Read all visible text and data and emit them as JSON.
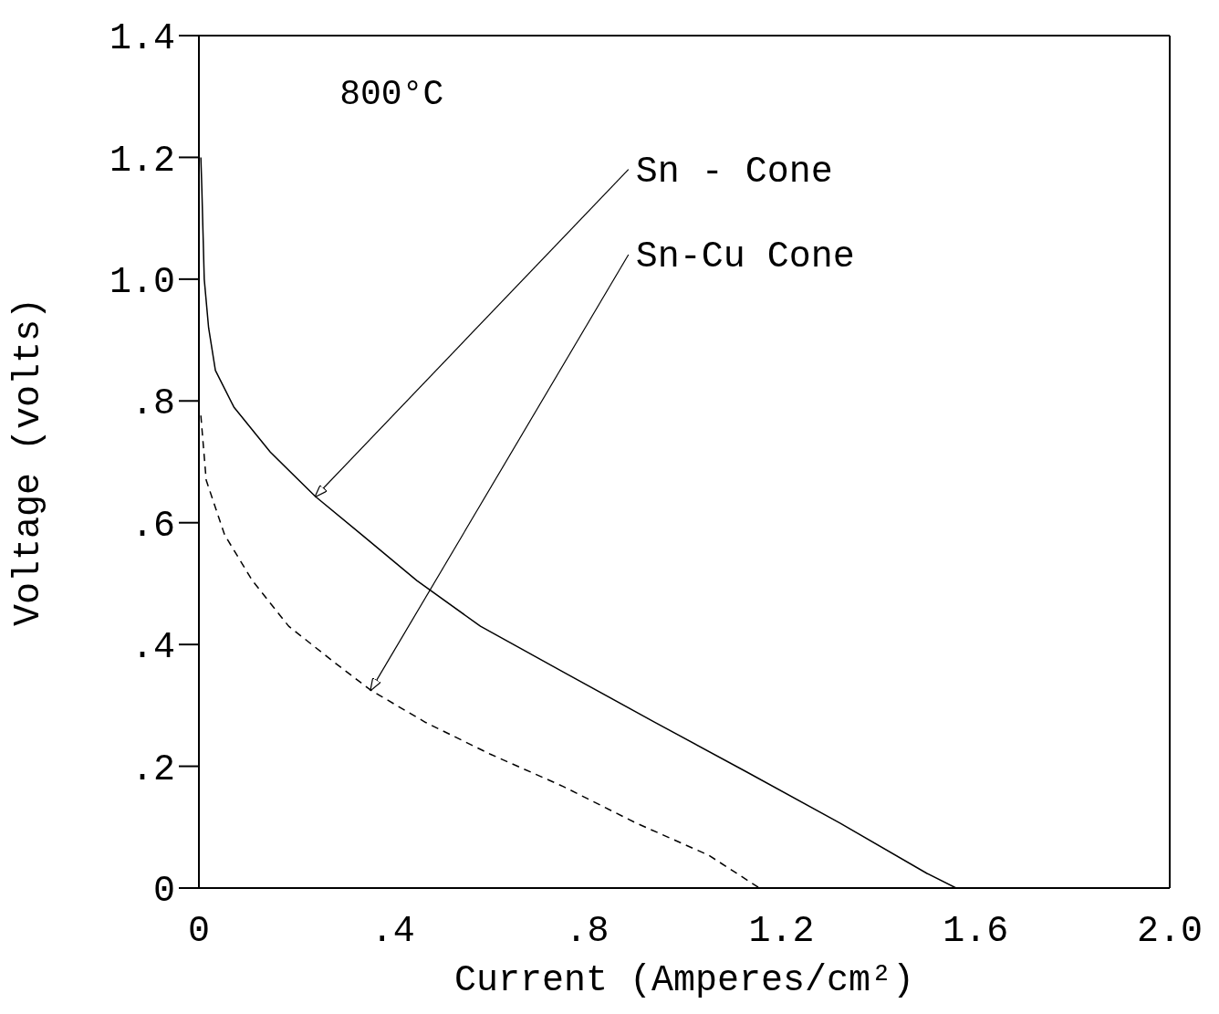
{
  "chart_data": {
    "type": "line",
    "xlabel": "Current (Amperes/cm²)",
    "ylabel": "Voltage (volts)",
    "xlim": [
      0,
      2
    ],
    "xticks": [
      0,
      {
        "value": 0.4,
        "label": ".4"
      },
      {
        "value": 0.8,
        "label": ".8"
      },
      1.2,
      1.6,
      {
        "value": 2,
        "label": "2.0"
      }
    ],
    "ylim": [
      0,
      1.4
    ],
    "yticks": [
      0,
      {
        "value": 0.2,
        "label": ".2"
      },
      {
        "value": 0.4,
        "label": ".4"
      },
      {
        "value": 0.6,
        "label": ".6"
      },
      {
        "value": 0.8,
        "label": ".8"
      },
      {
        "value": 1,
        "label": "1.0"
      },
      1.2,
      1.4
    ],
    "marker": "none",
    "series": [
      {
        "color": "#000000",
        "line_style": "solid",
        "x": [
          0.004,
          0.006,
          0.011,
          0.02,
          0.034,
          0.072,
          0.147,
          0.24,
          0.336,
          0.449,
          0.58,
          0.75,
          0.94,
          1.13,
          1.32,
          1.5,
          1.56
        ],
        "values": [
          1.2,
          1.15,
          1.0,
          0.92,
          0.85,
          0.79,
          0.716,
          0.643,
          0.58,
          0.505,
          0.43,
          0.355,
          0.272,
          0.19,
          0.107,
          0.024,
          0
        ]
      },
      {
        "color": "#000000",
        "line_style": "dashed",
        "x": [
          0.004,
          0.015,
          0.053,
          0.11,
          0.185,
          0.28,
          0.354,
          0.467,
          0.6,
          0.75,
          0.9,
          1.05,
          1.155
        ],
        "values": [
          0.776,
          0.67,
          0.58,
          0.505,
          0.43,
          0.37,
          0.325,
          0.272,
          0.22,
          0.167,
          0.107,
          0.054,
          0
        ]
      }
    ],
    "annotations": [
      "800°C",
      {
        "text": "Sn - Cone",
        "x": 0.24,
        "y": 0.643
      },
      {
        "text": "Sn-Cu Cone",
        "x": 0.354,
        "y": 0.325
      }
    ]
  }
}
